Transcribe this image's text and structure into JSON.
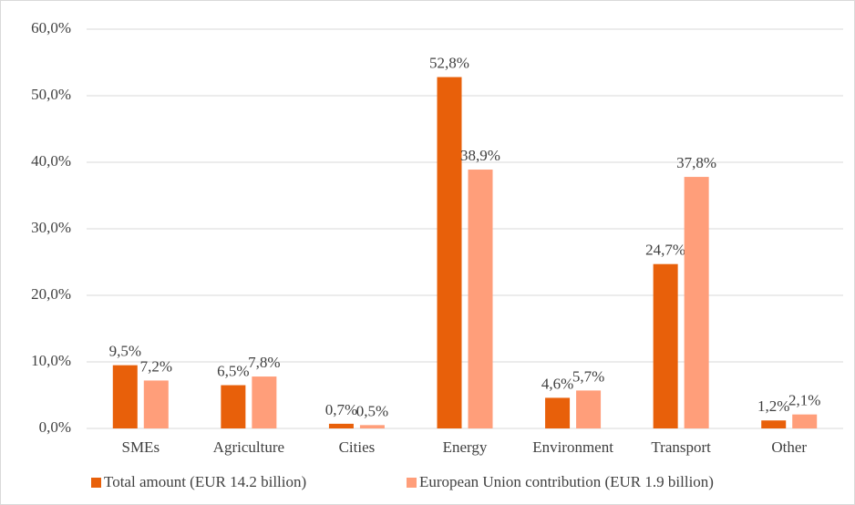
{
  "chart_data": {
    "type": "bar",
    "categories": [
      "SMEs",
      "Agriculture",
      "Cities",
      "Energy",
      "Environment",
      "Transport",
      "Other"
    ],
    "series": [
      {
        "name": "Total amount (EUR 14.2 billion)",
        "color": "#e8600a",
        "values": [
          9.5,
          6.5,
          0.7,
          52.8,
          4.6,
          24.7,
          1.2
        ],
        "value_labels": [
          "9,5%",
          "6,5%",
          "0,7%",
          "52,8%",
          "4,6%",
          "24,7%",
          "1,2%"
        ]
      },
      {
        "name": "European Union contribution (EUR 1.9 billion)",
        "color": "#ff9e7a",
        "values": [
          7.2,
          7.8,
          0.5,
          38.9,
          5.7,
          37.8,
          2.1
        ],
        "value_labels": [
          "7,2%",
          "7,8%",
          "0,5%",
          "38,9%",
          "5,7%",
          "37,8%",
          "2,1%"
        ]
      }
    ],
    "ylim": [
      0,
      60
    ],
    "yticks": [
      {
        "value": 0,
        "label": "0,0%"
      },
      {
        "value": 10,
        "label": "10,0%"
      },
      {
        "value": 20,
        "label": "20,0%"
      },
      {
        "value": 30,
        "label": "30,0%"
      },
      {
        "value": 40,
        "label": "40,0%"
      },
      {
        "value": 50,
        "label": "50,0%"
      },
      {
        "value": 60,
        "label": "60,0%"
      }
    ],
    "grid": true,
    "legend": "bottom"
  }
}
